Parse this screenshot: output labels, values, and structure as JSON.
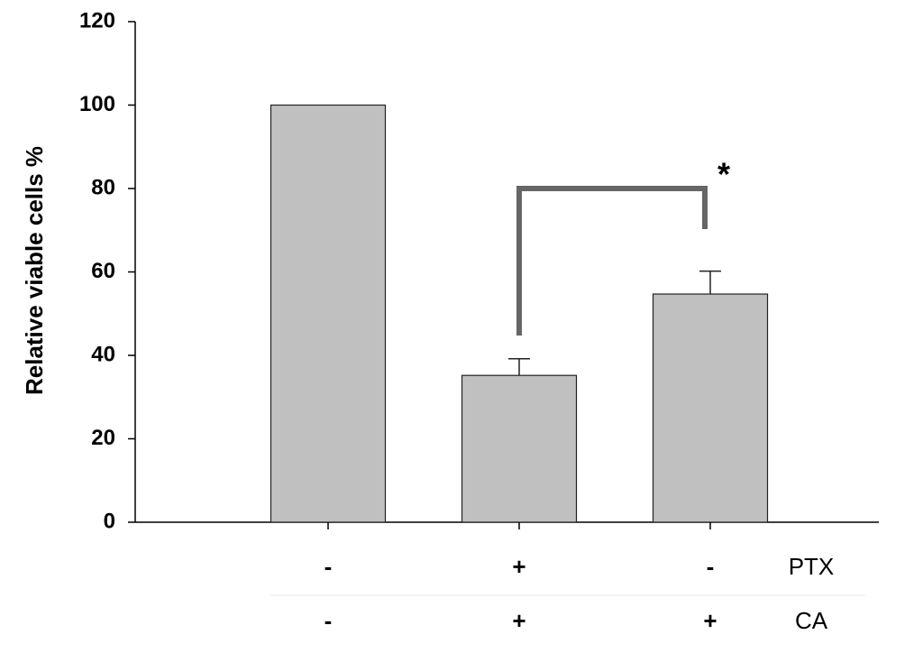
{
  "chart_data": {
    "type": "bar",
    "y_label": "Relative viable cells %",
    "categories": [
      null,
      null,
      null
    ],
    "values": [
      100,
      35.2,
      54.7
    ],
    "errors": [
      null,
      4,
      5.5
    ],
    "color": "#c0c0c0",
    "ylim": [
      0,
      120
    ],
    "yticks": [
      0,
      20,
      40,
      60,
      80,
      100,
      120
    ],
    "conditions": [
      {
        "name": "PTX",
        "values": [
          "-",
          "+",
          "-"
        ]
      },
      {
        "name": "CA",
        "values": [
          "-",
          "+",
          "+"
        ]
      }
    ],
    "annotation": "*"
  }
}
